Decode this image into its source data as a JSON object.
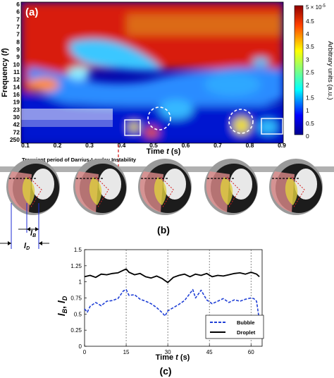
{
  "panel_a": {
    "label": "(a)",
    "ylabel": "Frequency (",
    "ylabel_var": "f",
    "ylabel_close": ")",
    "xlabel": "Time ",
    "xlabel_var": "t",
    "xlabel_unit": " (s)",
    "yticks": [
      "6",
      "6",
      "7",
      "7",
      "7",
      "8",
      "9",
      "9",
      "10",
      "11",
      "12",
      "14",
      "16",
      "19",
      "23",
      "30",
      "42",
      "72",
      "250"
    ],
    "xticks": [
      "0.1",
      "0.2",
      "0.3",
      "0.4",
      "0.5",
      "0.6",
      "0.7",
      "0.8",
      "0.9"
    ],
    "colorbar": {
      "top_label": "5 × 10",
      "top_exp": "-5",
      "ticks": [
        "4.5",
        "4",
        "3.5",
        "3",
        "2.5",
        "2",
        "1.5",
        "1",
        "0.5",
        "0"
      ],
      "title": "Arbitrary units (a.u.)"
    }
  },
  "annotation": {
    "text": "Transient period of Darrius-Landau Instability"
  },
  "panel_b": {
    "label": "(b)",
    "lb_label": "l",
    "lb_sub": "B",
    "ld_label": "l",
    "ld_sub": "D",
    "frames": 5
  },
  "chart_data": {
    "type": "line",
    "title": "",
    "xlabel": "Time t (s)",
    "ylabel": "lB, lD",
    "xlim": [
      0,
      64
    ],
    "ylim": [
      0,
      1.5
    ],
    "xticks": [
      0,
      15,
      30,
      45,
      60
    ],
    "yticks": [
      0,
      0.25,
      0.5,
      0.75,
      1,
      1.25,
      1.5
    ],
    "vertical_gridlines": [
      15,
      30,
      45,
      60
    ],
    "legend_position": "bottom-right",
    "series": [
      {
        "name": "Droplet",
        "color": "#000000",
        "style": "solid",
        "x": [
          0,
          2,
          4,
          6,
          8,
          10,
          12,
          14,
          15,
          16,
          18,
          20,
          22,
          24,
          26,
          28,
          30,
          32,
          34,
          36,
          38,
          40,
          42,
          44,
          46,
          48,
          50,
          52,
          54,
          56,
          58,
          60,
          62,
          63
        ],
        "y": [
          1.08,
          1.1,
          1.07,
          1.12,
          1.11,
          1.13,
          1.14,
          1.18,
          1.2,
          1.15,
          1.11,
          1.13,
          1.08,
          1.06,
          1.09,
          1.05,
          0.99,
          1.07,
          1.1,
          1.12,
          1.08,
          1.12,
          1.1,
          1.13,
          1.08,
          1.1,
          1.09,
          1.11,
          1.13,
          1.14,
          1.12,
          1.15,
          1.12,
          1.08
        ]
      },
      {
        "name": "Bubble",
        "color": "#1f3fd6",
        "style": "dashed",
        "x": [
          0,
          1,
          2,
          4,
          6,
          8,
          10,
          12,
          14,
          15,
          16,
          18,
          20,
          22,
          24,
          26,
          28,
          29,
          30,
          32,
          34,
          36,
          38,
          39,
          40,
          42,
          44,
          46,
          48,
          50,
          52,
          54,
          56,
          58,
          60,
          61,
          62,
          63
        ],
        "y": [
          0.58,
          0.53,
          0.62,
          0.68,
          0.63,
          0.7,
          0.71,
          0.74,
          0.86,
          0.88,
          0.79,
          0.8,
          0.73,
          0.7,
          0.66,
          0.6,
          0.52,
          0.47,
          0.55,
          0.6,
          0.65,
          0.71,
          0.82,
          0.88,
          0.75,
          0.87,
          0.72,
          0.66,
          0.7,
          0.74,
          0.68,
          0.72,
          0.7,
          0.73,
          0.75,
          0.74,
          0.7,
          0.4
        ]
      }
    ]
  },
  "panel_c": {
    "label": "(c)",
    "ylabel_l1": "l",
    "ylabel_s1": "B",
    "ylabel_sep": ", ",
    "ylabel_l2": "l",
    "ylabel_s2": "D",
    "xlabel": "Time ",
    "xlabel_var": "t",
    "xlabel_unit": " (s)",
    "xtick_labels": [
      "0",
      "15",
      "30",
      "45",
      "60"
    ],
    "ytick_labels": [
      "0",
      "0.25",
      "0.5",
      "0.75",
      "1",
      "1.25",
      "1.5"
    ],
    "legend_bubble": "Bubble",
    "legend_droplet": "Droplet"
  }
}
